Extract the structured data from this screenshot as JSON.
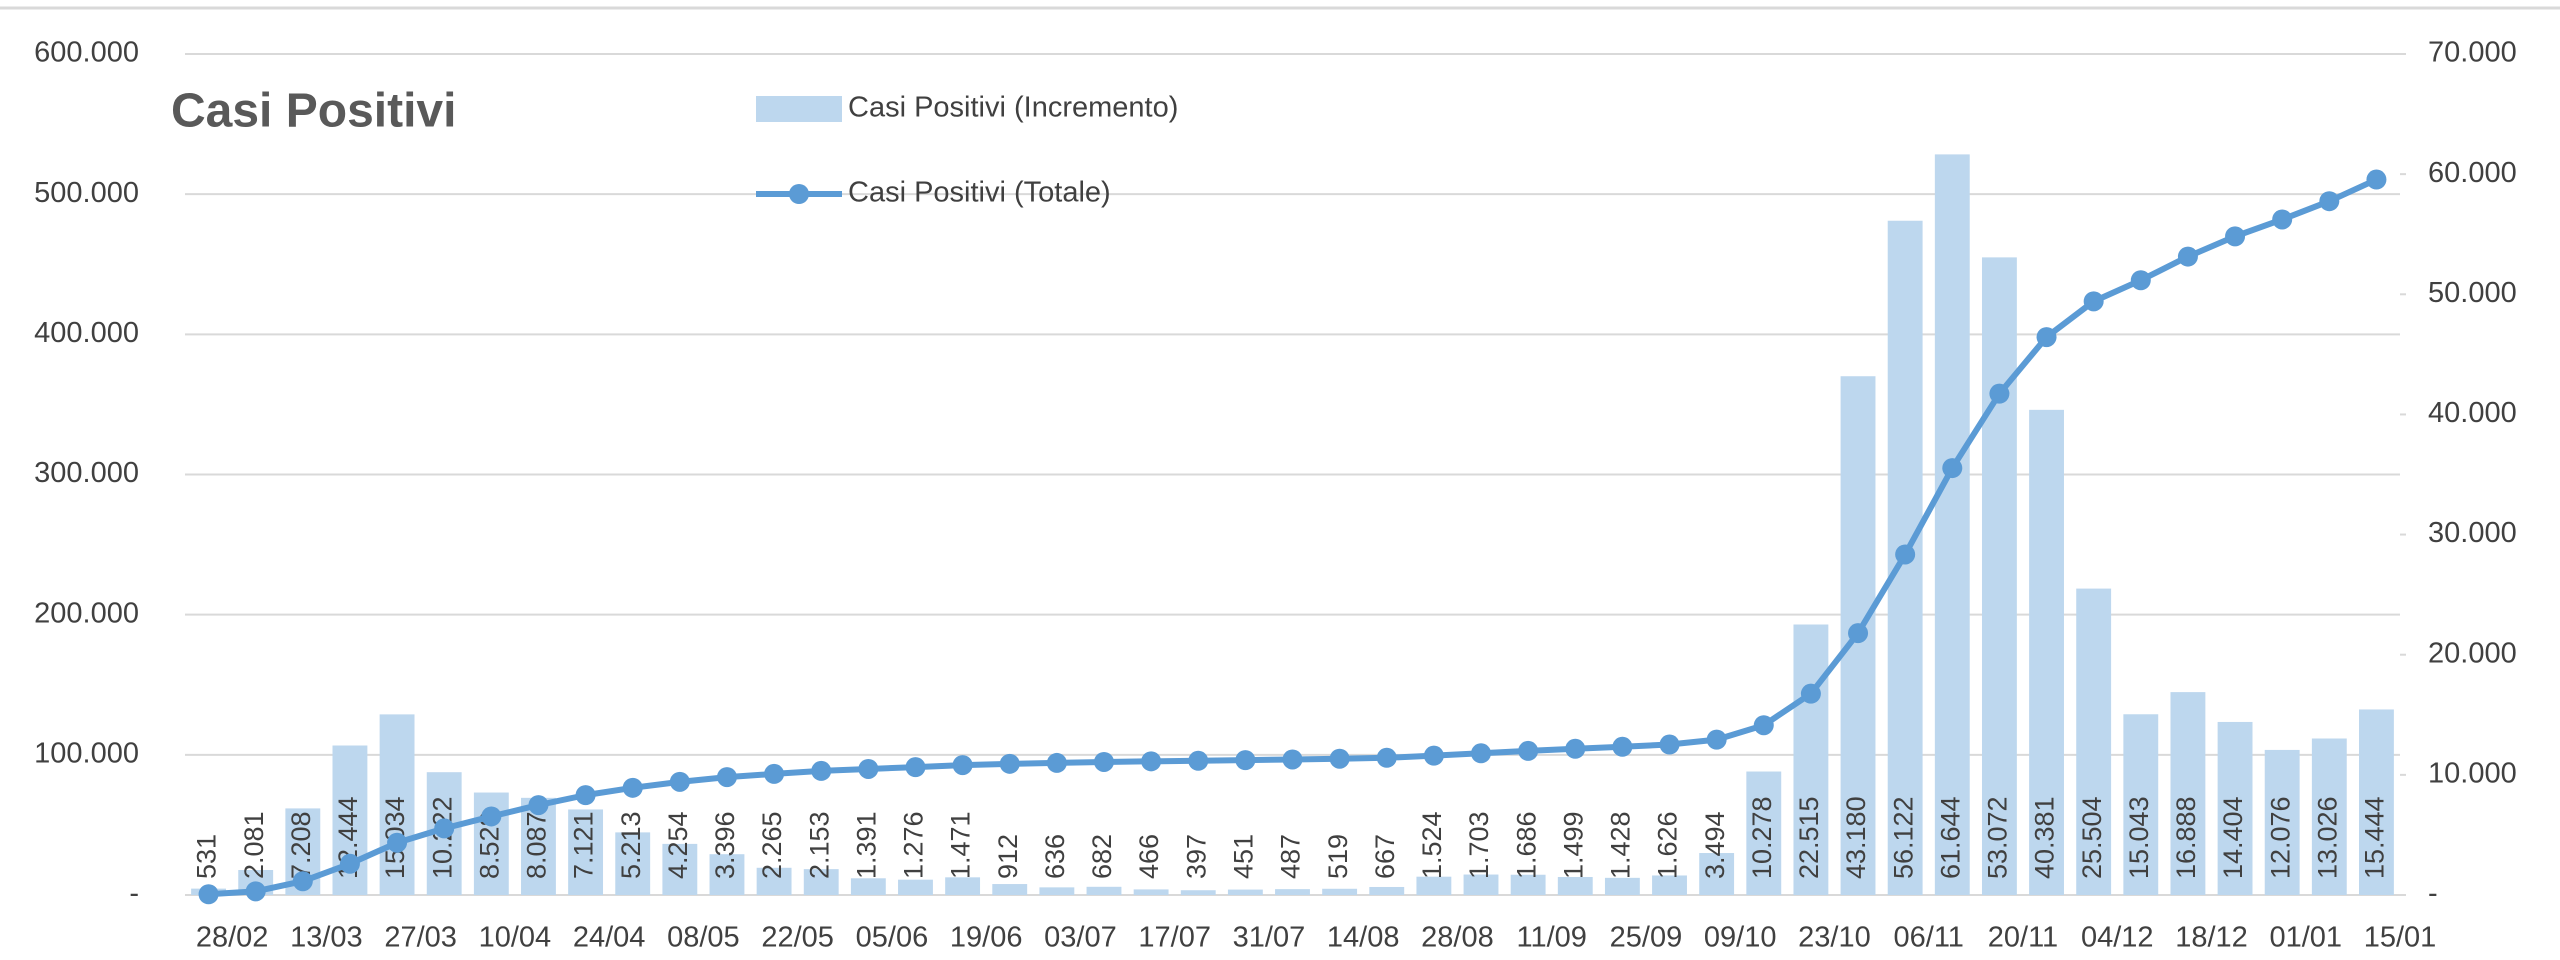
{
  "chart_data": {
    "type": "combo",
    "title": "Casi Positivi",
    "categories": [
      "28/02",
      null,
      "13/03",
      null,
      "27/03",
      null,
      "10/04",
      null,
      "24/04",
      null,
      "08/05",
      null,
      "22/05",
      null,
      "05/06",
      null,
      "19/06",
      null,
      "03/07",
      null,
      "17/07",
      null,
      "31/07",
      null,
      "14/08",
      null,
      "28/08",
      null,
      "11/09",
      null,
      "25/09",
      null,
      "09/10",
      null,
      "23/10",
      null,
      "06/11",
      null,
      "20/11",
      null,
      "04/12",
      null,
      "18/12",
      null,
      "01/01",
      null,
      "15/01"
    ],
    "series": [
      {
        "name": "Casi Positivi (Incremento)",
        "type": "bar",
        "axis": "y2",
        "color": "#bdd7ee",
        "values": [
          531,
          2081,
          7208,
          12444,
          15034,
          10222,
          8528,
          8087,
          7121,
          5213,
          4254,
          3396,
          2265,
          2153,
          1391,
          1276,
          1471,
          912,
          636,
          682,
          466,
          397,
          451,
          487,
          519,
          667,
          1524,
          1703,
          1686,
          1499,
          1428,
          1626,
          3494,
          10278,
          22515,
          43180,
          56122,
          61644,
          53072,
          40381,
          25504,
          15043,
          16888,
          14404,
          12076,
          13026,
          15444
        ],
        "value_labels": [
          "531",
          "2.081",
          "7.208",
          "12.444",
          "15.034",
          "10.222",
          "8.528",
          "8.087",
          "7.121",
          "5.213",
          "4.254",
          "3.396",
          "2.265",
          "2.153",
          "1.391",
          "1.276",
          "1.471",
          "912",
          "636",
          "682",
          "466",
          "397",
          "451",
          "487",
          "519",
          "667",
          "1.524",
          "1.703",
          "1.686",
          "1.499",
          "1.428",
          "1.626",
          "3.494",
          "10.278",
          "22.515",
          "43.180",
          "56.122",
          "61.644",
          "53.072",
          "40.381",
          "25.504",
          "15.043",
          "16.888",
          "14.404",
          "12.076",
          "13.026",
          "15.444"
        ]
      },
      {
        "name": "Casi Positivi (Totale)",
        "type": "line",
        "axis": "y",
        "color": "#5b9bd5",
        "values": [
          531,
          2612,
          9820,
          22264,
          37298,
          47520,
          56048,
          64135,
          71256,
          76469,
          80723,
          84119,
          86384,
          88537,
          89928,
          91204,
          92675,
          93587,
          94223,
          94905,
          95371,
          95768,
          96219,
          96706,
          97225,
          97892,
          99416,
          101119,
          102805,
          104304,
          105732,
          107358,
          110852,
          121130,
          143645,
          186825,
          242947,
          304591,
          357663,
          398044,
          423548,
          438591,
          455479,
          469883,
          481959,
          494985,
          510429
        ]
      }
    ],
    "ylim": [
      0,
      600000
    ],
    "yticks": [
      {
        "value": 0,
        "label": "-"
      },
      {
        "value": 100000,
        "label": "100.000"
      },
      {
        "value": 200000,
        "label": "200.000"
      },
      {
        "value": 300000,
        "label": "300.000"
      },
      {
        "value": 400000,
        "label": "400.000"
      },
      {
        "value": 500000,
        "label": "500.000"
      },
      {
        "value": 600000,
        "label": "600.000"
      }
    ],
    "y2lim": [
      0,
      70000
    ],
    "y2ticks": [
      {
        "value": 0,
        "label": "-"
      },
      {
        "value": 10000,
        "label": "10.000"
      },
      {
        "value": 20000,
        "label": "20.000"
      },
      {
        "value": 30000,
        "label": "30.000"
      },
      {
        "value": 40000,
        "label": "40.000"
      },
      {
        "value": 50000,
        "label": "50.000"
      },
      {
        "value": 60000,
        "label": "60.000"
      },
      {
        "value": 70000,
        "label": "70.000"
      }
    ],
    "grid": true
  }
}
